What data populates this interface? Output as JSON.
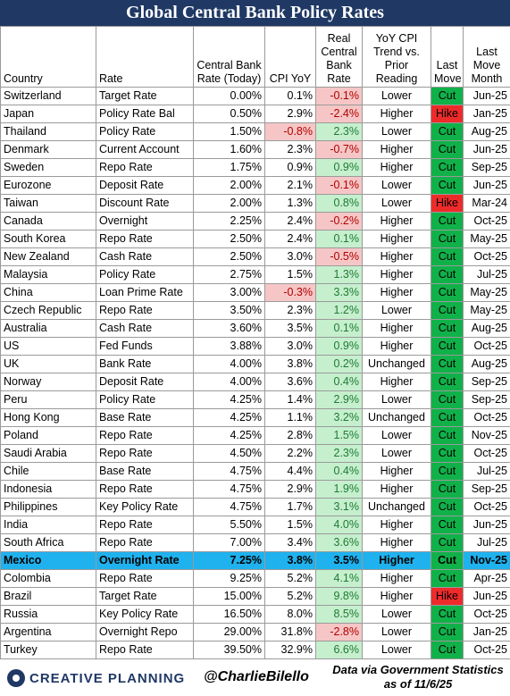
{
  "title": "Global Central Bank Policy Rates",
  "headers": [
    "Country",
    "Rate",
    "Central Bank Rate (Today)",
    "CPI YoY",
    "Real Central Bank Rate",
    "YoY CPI Trend vs. Prior Reading",
    "Last Move",
    "Last Move Month"
  ],
  "rows": [
    {
      "country": "Switzerland",
      "rate": "Target Rate",
      "cb_rate": "0.00%",
      "cpi": "0.1%",
      "real": "-0.1%",
      "trend": "Lower",
      "move": "Cut",
      "month": "Jun-25"
    },
    {
      "country": "Japan",
      "rate": "Policy Rate Bal",
      "cb_rate": "0.50%",
      "cpi": "2.9%",
      "real": "-2.4%",
      "trend": "Higher",
      "move": "Hike",
      "month": "Jan-25"
    },
    {
      "country": "Thailand",
      "rate": "Policy Rate",
      "cb_rate": "1.50%",
      "cpi": "-0.8%",
      "real": "2.3%",
      "trend": "Lower",
      "move": "Cut",
      "month": "Aug-25"
    },
    {
      "country": "Denmark",
      "rate": "Current Account",
      "cb_rate": "1.60%",
      "cpi": "2.3%",
      "real": "-0.7%",
      "trend": "Higher",
      "move": "Cut",
      "month": "Jun-25"
    },
    {
      "country": "Sweden",
      "rate": "Repo Rate",
      "cb_rate": "1.75%",
      "cpi": "0.9%",
      "real": "0.9%",
      "trend": "Higher",
      "move": "Cut",
      "month": "Sep-25"
    },
    {
      "country": "Eurozone",
      "rate": "Deposit Rate",
      "cb_rate": "2.00%",
      "cpi": "2.1%",
      "real": "-0.1%",
      "trend": "Lower",
      "move": "Cut",
      "month": "Jun-25"
    },
    {
      "country": "Taiwan",
      "rate": "Discount Rate",
      "cb_rate": "2.00%",
      "cpi": "1.3%",
      "real": "0.8%",
      "trend": "Lower",
      "move": "Hike",
      "month": "Mar-24"
    },
    {
      "country": "Canada",
      "rate": "Overnight",
      "cb_rate": "2.25%",
      "cpi": "2.4%",
      "real": "-0.2%",
      "trend": "Higher",
      "move": "Cut",
      "month": "Oct-25"
    },
    {
      "country": "South Korea",
      "rate": "Repo Rate",
      "cb_rate": "2.50%",
      "cpi": "2.4%",
      "real": "0.1%",
      "trend": "Higher",
      "move": "Cut",
      "month": "May-25"
    },
    {
      "country": "New Zealand",
      "rate": "Cash Rate",
      "cb_rate": "2.50%",
      "cpi": "3.0%",
      "real": "-0.5%",
      "trend": "Higher",
      "move": "Cut",
      "month": "Oct-25"
    },
    {
      "country": "Malaysia",
      "rate": "Policy Rate",
      "cb_rate": "2.75%",
      "cpi": "1.5%",
      "real": "1.3%",
      "trend": "Higher",
      "move": "Cut",
      "month": "Jul-25"
    },
    {
      "country": "China",
      "rate": "Loan Prime Rate",
      "cb_rate": "3.00%",
      "cpi": "-0.3%",
      "real": "3.3%",
      "trend": "Higher",
      "move": "Cut",
      "month": "May-25"
    },
    {
      "country": "Czech Republic",
      "rate": "Repo Rate",
      "cb_rate": "3.50%",
      "cpi": "2.3%",
      "real": "1.2%",
      "trend": "Lower",
      "move": "Cut",
      "month": "May-25"
    },
    {
      "country": "Australia",
      "rate": "Cash Rate",
      "cb_rate": "3.60%",
      "cpi": "3.5%",
      "real": "0.1%",
      "trend": "Higher",
      "move": "Cut",
      "month": "Aug-25"
    },
    {
      "country": "US",
      "rate": "Fed Funds",
      "cb_rate": "3.88%",
      "cpi": "3.0%",
      "real": "0.9%",
      "trend": "Higher",
      "move": "Cut",
      "month": "Oct-25"
    },
    {
      "country": "UK",
      "rate": "Bank Rate",
      "cb_rate": "4.00%",
      "cpi": "3.8%",
      "real": "0.2%",
      "trend": "Unchanged",
      "move": "Cut",
      "month": "Aug-25"
    },
    {
      "country": "Norway",
      "rate": "Deposit Rate",
      "cb_rate": "4.00%",
      "cpi": "3.6%",
      "real": "0.4%",
      "trend": "Higher",
      "move": "Cut",
      "month": "Sep-25"
    },
    {
      "country": "Peru",
      "rate": "Policy Rate",
      "cb_rate": "4.25%",
      "cpi": "1.4%",
      "real": "2.9%",
      "trend": "Lower",
      "move": "Cut",
      "month": "Sep-25"
    },
    {
      "country": "Hong Kong",
      "rate": "Base Rate",
      "cb_rate": "4.25%",
      "cpi": "1.1%",
      "real": "3.2%",
      "trend": "Unchanged",
      "move": "Cut",
      "month": "Oct-25"
    },
    {
      "country": "Poland",
      "rate": "Repo Rate",
      "cb_rate": "4.25%",
      "cpi": "2.8%",
      "real": "1.5%",
      "trend": "Lower",
      "move": "Cut",
      "month": "Nov-25"
    },
    {
      "country": "Saudi Arabia",
      "rate": "Repo Rate",
      "cb_rate": "4.50%",
      "cpi": "2.2%",
      "real": "2.3%",
      "trend": "Lower",
      "move": "Cut",
      "month": "Oct-25"
    },
    {
      "country": "Chile",
      "rate": "Base Rate",
      "cb_rate": "4.75%",
      "cpi": "4.4%",
      "real": "0.4%",
      "trend": "Higher",
      "move": "Cut",
      "month": "Jul-25"
    },
    {
      "country": "Indonesia",
      "rate": "Repo Rate",
      "cb_rate": "4.75%",
      "cpi": "2.9%",
      "real": "1.9%",
      "trend": "Higher",
      "move": "Cut",
      "month": "Sep-25"
    },
    {
      "country": "Philippines",
      "rate": "Key Policy Rate",
      "cb_rate": "4.75%",
      "cpi": "1.7%",
      "real": "3.1%",
      "trend": "Unchanged",
      "move": "Cut",
      "month": "Oct-25"
    },
    {
      "country": "India",
      "rate": "Repo Rate",
      "cb_rate": "5.50%",
      "cpi": "1.5%",
      "real": "4.0%",
      "trend": "Higher",
      "move": "Cut",
      "month": "Jun-25"
    },
    {
      "country": "South Africa",
      "rate": "Repo Rate",
      "cb_rate": "7.00%",
      "cpi": "3.4%",
      "real": "3.6%",
      "trend": "Higher",
      "move": "Cut",
      "month": "Jul-25"
    },
    {
      "country": "Mexico",
      "rate": "Overnight Rate",
      "cb_rate": "7.25%",
      "cpi": "3.8%",
      "real": "3.5%",
      "trend": "Higher",
      "move": "Cut",
      "month": "Nov-25",
      "highlight": true
    },
    {
      "country": "Colombia",
      "rate": "Repo Rate",
      "cb_rate": "9.25%",
      "cpi": "5.2%",
      "real": "4.1%",
      "trend": "Higher",
      "move": "Cut",
      "month": "Apr-25"
    },
    {
      "country": "Brazil",
      "rate": "Target Rate",
      "cb_rate": "15.00%",
      "cpi": "5.2%",
      "real": "9.8%",
      "trend": "Higher",
      "move": "Hike",
      "month": "Jun-25"
    },
    {
      "country": "Russia",
      "rate": "Key Policy Rate",
      "cb_rate": "16.50%",
      "cpi": "8.0%",
      "real": "8.5%",
      "trend": "Lower",
      "move": "Cut",
      "month": "Oct-25"
    },
    {
      "country": "Argentina",
      "rate": "Overnight Repo",
      "cb_rate": "29.00%",
      "cpi": "31.8%",
      "real": "-2.8%",
      "trend": "Lower",
      "move": "Cut",
      "month": "Jan-25"
    },
    {
      "country": "Turkey",
      "rate": "Repo Rate",
      "cb_rate": "39.50%",
      "cpi": "32.9%",
      "real": "6.6%",
      "trend": "Lower",
      "move": "Cut",
      "month": "Oct-25"
    }
  ],
  "footer": {
    "logo": "CREATIVE PLANNING",
    "handle": "@CharlieBilello",
    "source_line1": "Data via Government Statistics",
    "source_line2": "as of 11/6/25"
  },
  "colors": {
    "title_bg": "#1f3864",
    "negative_bg": "#f6c6c6",
    "positive_bg": "#c6efce",
    "cut": "#11b14a",
    "hike": "#ee2b2b",
    "highlight": "#1fb2ee"
  },
  "chart_data": {
    "type": "table",
    "title": "Global Central Bank Policy Rates",
    "columns": [
      "Country",
      "Rate",
      "Central Bank Rate (Today)",
      "CPI YoY",
      "Real Central Bank Rate",
      "YoY CPI Trend vs. Prior Reading",
      "Last Move",
      "Last Move Month"
    ]
  }
}
